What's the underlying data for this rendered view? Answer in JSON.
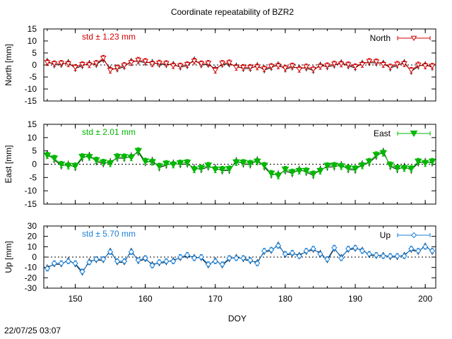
{
  "title": "Coordinate repeatability of BZR2",
  "timestamp": "22/07/25 03:07",
  "xlabel": "DOY",
  "x_ticks": [
    "150",
    "160",
    "170",
    "180",
    "190",
    "200"
  ],
  "chart_data": [
    {
      "type": "line",
      "name": "North",
      "ylabel": "North [mm]",
      "ylim": [
        -15,
        15
      ],
      "y_ticks": [
        "15",
        "10",
        "5",
        "0",
        "-5",
        "-10",
        "-15"
      ],
      "xlim": [
        145.5,
        201.5
      ],
      "std_label": "std ± 1.23 mm",
      "legend": "North",
      "legend_position": "top-right",
      "marker": "open-triangle-down",
      "color": "#d00000",
      "x": [
        146,
        147,
        148,
        149,
        150,
        151,
        152,
        153,
        154,
        155,
        156,
        157,
        158,
        159,
        160,
        161,
        162,
        163,
        164,
        165,
        166,
        167,
        168,
        169,
        170,
        171,
        172,
        173,
        174,
        175,
        176,
        177,
        178,
        179,
        180,
        181,
        182,
        183,
        184,
        185,
        186,
        187,
        188,
        189,
        190,
        191,
        192,
        193,
        194,
        195,
        196,
        197,
        198,
        199,
        200,
        201
      ],
      "y": [
        1.0,
        0.5,
        0.7,
        0.5,
        -1.0,
        0.2,
        0.1,
        0.7,
        2.8,
        -2.2,
        -1.2,
        -0.2,
        1.0,
        2.0,
        1.5,
        0.5,
        0.8,
        0.6,
        -0.3,
        -0.4,
        0.2,
        1.6,
        0.5,
        0.7,
        -2.2,
        0.7,
        0.9,
        -1.0,
        -1.0,
        -1.0,
        -0.8,
        -1.6,
        -0.6,
        -0.4,
        -1.3,
        -0.4,
        -1.8,
        -0.8,
        -1.8,
        -0.6,
        -0.3,
        0.4,
        0.4,
        0.1,
        -0.7,
        0.2,
        1.5,
        1.3,
        0.2,
        -0.8,
        0.3,
        0.5,
        -2.2,
        0.0,
        -0.4,
        -0.5
      ]
    },
    {
      "type": "line",
      "name": "East",
      "ylabel": "East [mm]",
      "ylim": [
        -15,
        15
      ],
      "y_ticks": [
        "15",
        "10",
        "5",
        "0",
        "-5",
        "-10",
        "-15"
      ],
      "xlim": [
        145.5,
        201.5
      ],
      "std_label": "std ± 2.01 mm",
      "legend": "East",
      "legend_position": "top-right",
      "marker": "filled-triangle-down",
      "color": "#00b800",
      "x": [
        146,
        147,
        148,
        149,
        150,
        151,
        152,
        153,
        154,
        155,
        156,
        157,
        158,
        159,
        160,
        161,
        162,
        163,
        164,
        165,
        166,
        167,
        168,
        169,
        170,
        171,
        172,
        173,
        174,
        175,
        176,
        177,
        178,
        179,
        180,
        181,
        182,
        183,
        184,
        185,
        186,
        187,
        188,
        189,
        190,
        191,
        192,
        193,
        194,
        195,
        196,
        197,
        198,
        199,
        200,
        201
      ],
      "y": [
        3.3,
        2.2,
        -0.1,
        -0.6,
        -0.7,
        2.8,
        2.7,
        1.5,
        0.7,
        0.3,
        2.8,
        2.7,
        2.5,
        5.0,
        1.1,
        0.8,
        -0.8,
        0.2,
        -0.2,
        0.4,
        0.6,
        -2.0,
        -1.5,
        -0.5,
        -2.0,
        -2.0,
        -1.8,
        0.7,
        0.6,
        0.3,
        1.0,
        -0.5,
        -3.5,
        -4.3,
        -2.0,
        -3.0,
        -2.5,
        -2.5,
        -3.7,
        -2.5,
        -0.6,
        -0.5,
        -0.8,
        -1.5,
        -1.7,
        -0.5,
        1.0,
        3.5,
        4.2,
        -0.3,
        -1.5,
        -1.5,
        -1.7,
        1.0,
        0.4,
        1.0
      ]
    },
    {
      "type": "line",
      "name": "Up",
      "ylabel": "Up [mm]",
      "ylim": [
        -30,
        30
      ],
      "y_ticks": [
        "30",
        "20",
        "10",
        "0",
        "-10",
        "-20",
        "-30"
      ],
      "xlim": [
        145.5,
        201.5
      ],
      "std_label": "std ± 5.70 mm",
      "legend": "Up",
      "legend_position": "top-right",
      "marker": "open-diamond",
      "color": "#1a7fd6",
      "x": [
        146,
        147,
        148,
        149,
        150,
        151,
        152,
        153,
        154,
        155,
        156,
        157,
        158,
        159,
        160,
        161,
        162,
        163,
        164,
        165,
        166,
        167,
        168,
        169,
        170,
        171,
        172,
        173,
        174,
        175,
        176,
        177,
        178,
        179,
        180,
        181,
        182,
        183,
        184,
        185,
        186,
        187,
        188,
        189,
        190,
        191,
        192,
        193,
        194,
        195,
        196,
        197,
        198,
        199,
        200,
        201
      ],
      "y": [
        -11,
        -6,
        -6,
        -4,
        -6,
        -14,
        -5,
        -2,
        -2,
        5,
        -4,
        -4,
        5,
        -3,
        -1,
        -8,
        -5,
        -4,
        -4,
        0,
        2,
        -1,
        0,
        -7,
        -4,
        -7,
        -1,
        -1,
        -1,
        -3,
        -6,
        6,
        7,
        11,
        3,
        4,
        1,
        6,
        8,
        3,
        -2,
        9,
        -1,
        8,
        9,
        6,
        3,
        2,
        1,
        1,
        1,
        1,
        8,
        6,
        10,
        6
      ]
    }
  ]
}
